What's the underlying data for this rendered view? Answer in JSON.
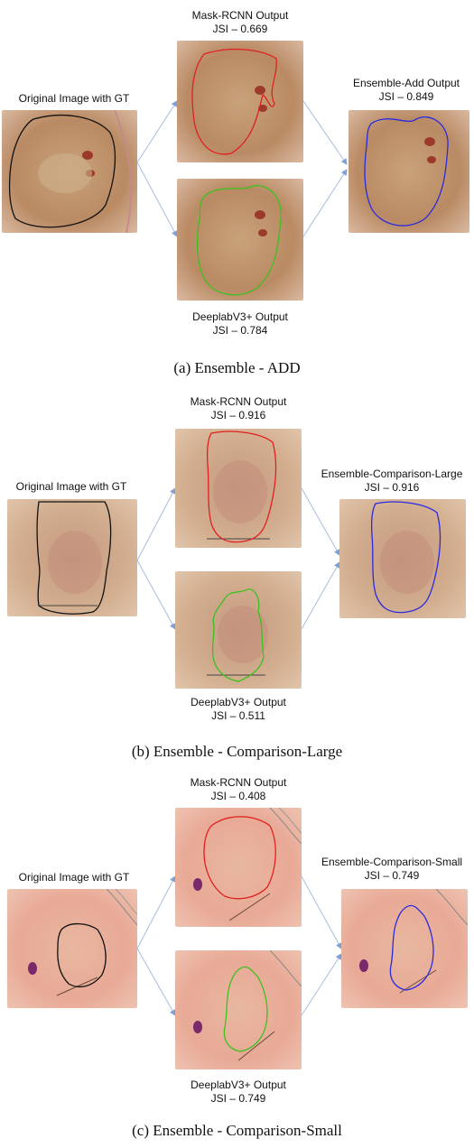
{
  "panels": [
    {
      "caption": "(a) Ensemble - ADD",
      "original_label": "Original Image with GT",
      "mask_label": "Mask-RCNN Output",
      "mask_jsi": "JSI – 0.669",
      "deeplab_label": "DeeplabV3+ Output",
      "deeplab_jsi": "JSI – 0.784",
      "ensemble_label": "Ensemble-Add Output",
      "ensemble_jsi": "JSI – 0.849"
    },
    {
      "caption": "(b) Ensemble - Comparison-Large",
      "original_label": "Original Image with GT",
      "mask_label": "Mask-RCNN Output",
      "mask_jsi": "JSI – 0.916",
      "deeplab_label": "DeeplabV3+ Output",
      "deeplab_jsi": "JSI – 0.511",
      "ensemble_label": "Ensemble-Comparison-Large",
      "ensemble_jsi": "JSI – 0.916"
    },
    {
      "caption": "(c) Ensemble - Comparison-Small",
      "original_label": "Original Image with GT",
      "mask_label": "Mask-RCNN Output",
      "mask_jsi": "JSI – 0.408",
      "deeplab_label": "DeeplabV3+ Output",
      "deeplab_jsi": "JSI – 0.749",
      "ensemble_label": "Ensemble-Comparison-Small",
      "ensemble_jsi": "JSI – 0.749"
    }
  ],
  "colors": {
    "ground_truth": "#111111",
    "mask_rcnn": "#e02020",
    "deeplab": "#3cc020",
    "ensemble": "#2a2ae0",
    "arrow": "#7f9fd6"
  }
}
